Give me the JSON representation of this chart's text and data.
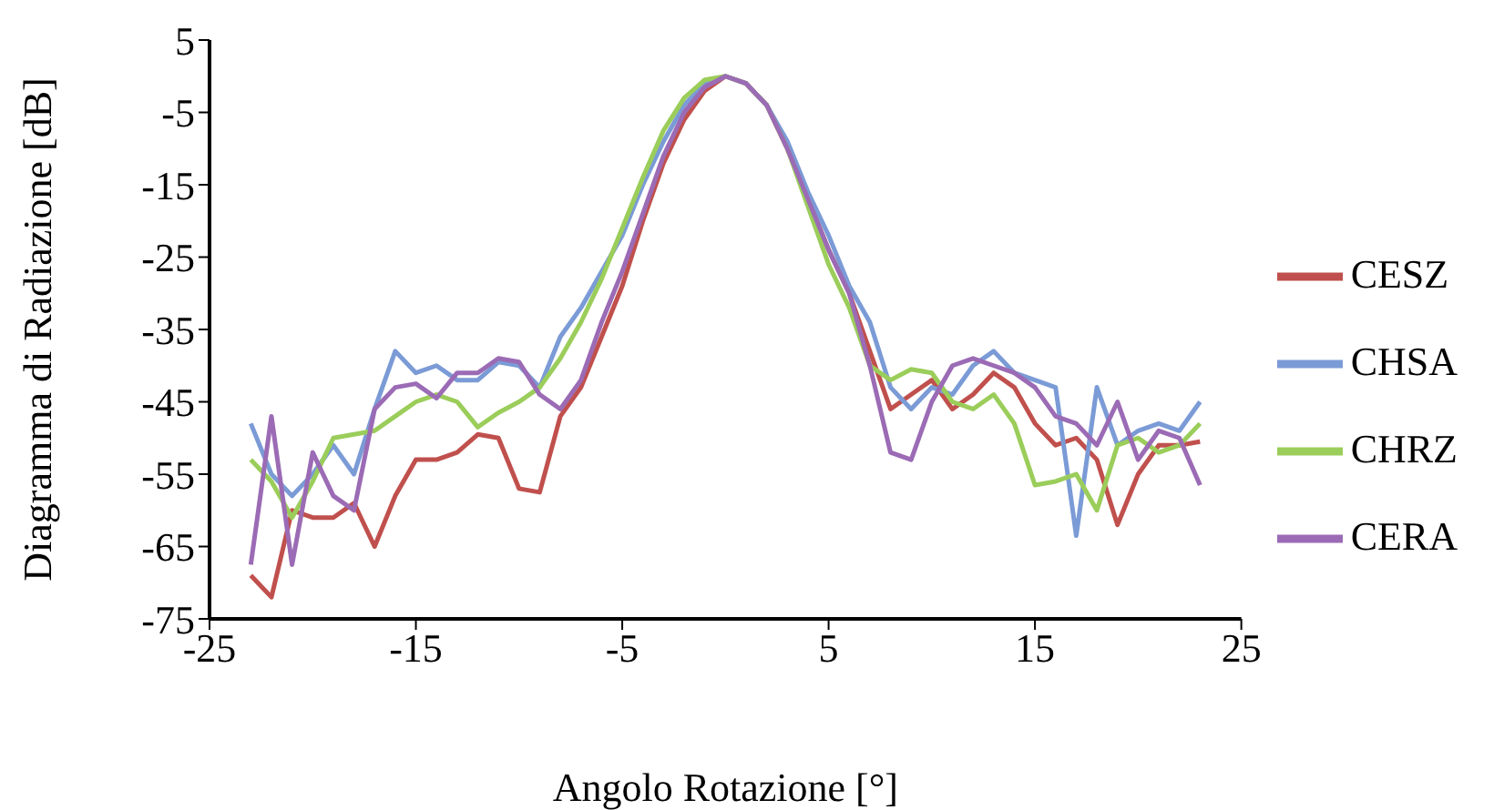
{
  "chart_data": {
    "type": "line",
    "xlabel": "Angolo Rotazione  [°]",
    "ylabel": "Diagramma di Radiazione  [dB]",
    "x": [
      -23,
      -22,
      -21,
      -20,
      -19,
      -18,
      -17,
      -16,
      -15,
      -14,
      -13,
      -12,
      -11,
      -10,
      -9,
      -8,
      -7,
      -6,
      -5,
      -4,
      -3,
      -2,
      -1,
      0,
      1,
      2,
      3,
      4,
      5,
      6,
      7,
      8,
      9,
      10,
      11,
      12,
      13,
      14,
      15,
      16,
      17,
      18,
      19,
      20,
      21,
      22,
      23
    ],
    "series": [
      {
        "name": "CESZ",
        "color": "#c0504d",
        "values": [
          -69,
          -72,
          -60,
          -61,
          -61,
          -59,
          -65,
          -58,
          -53,
          -53,
          -52,
          -49.5,
          -50,
          -57,
          -57.5,
          -47,
          -43,
          -36,
          -29,
          -20,
          -12,
          -6,
          -2,
          0,
          -1,
          -4,
          -10,
          -17,
          -24,
          -30,
          -38,
          -46,
          -44,
          -42,
          -46,
          -44,
          -41,
          -43,
          -48,
          -51,
          -50,
          -53,
          -62,
          -55,
          -51,
          -51,
          -50.5
        ]
      },
      {
        "name": "CHSA",
        "color": "#7b9bd6",
        "values": [
          -48,
          -55,
          -58,
          -55,
          -51,
          -55,
          -46,
          -38,
          -41,
          -40,
          -42,
          -42,
          -39.5,
          -40,
          -43,
          -36,
          -32,
          -27,
          -22,
          -15,
          -9,
          -4,
          -1,
          0,
          -1,
          -4,
          -9,
          -16,
          -22,
          -29,
          -34,
          -43,
          -46,
          -43,
          -44,
          -40,
          -38,
          -41,
          -42,
          -43,
          -63.5,
          -43,
          -51,
          -49,
          -48,
          -49,
          -45
        ]
      },
      {
        "name": "CHRZ",
        "color": "#9bcd5a",
        "values": [
          -53,
          -56,
          -61,
          -56,
          -50,
          -49.5,
          -49,
          -47,
          -45,
          -44,
          -45,
          -48.5,
          -46.5,
          -45,
          -43,
          -39,
          -34,
          -28,
          -21,
          -14,
          -7.5,
          -3,
          -0.5,
          0,
          -1,
          -4,
          -10,
          -18,
          -26,
          -32,
          -40,
          -42,
          -40.5,
          -41,
          -45,
          -46,
          -44,
          -48,
          -56.5,
          -56,
          -55,
          -60,
          -51,
          -50,
          -52,
          -51,
          -48
        ]
      },
      {
        "name": "CERA",
        "color": "#9b6bb5",
        "values": [
          -67.5,
          -47,
          -67.5,
          -52,
          -58,
          -60,
          -46,
          -43,
          -42.5,
          -44.5,
          -41,
          -41,
          -39,
          -39.5,
          -44,
          -46,
          -42,
          -34,
          -27,
          -19,
          -11,
          -5,
          -1.5,
          0,
          -1,
          -4,
          -10,
          -17,
          -24,
          -30,
          -40,
          -52,
          -53,
          -45,
          -40,
          -39,
          -40,
          -41,
          -43,
          -47,
          -48,
          -51,
          -45,
          -53,
          -49,
          -50,
          -56.5
        ]
      }
    ],
    "xlim": [
      -25,
      25
    ],
    "xticks": [
      -25,
      -15,
      -5,
      5,
      15,
      25
    ],
    "ylim": [
      -75,
      5
    ],
    "yticks": [
      -75,
      -65,
      -55,
      -45,
      -35,
      -25,
      -15,
      -5,
      5
    ],
    "grid": false,
    "legend": "right",
    "marker": "none",
    "line_style": "solid"
  }
}
